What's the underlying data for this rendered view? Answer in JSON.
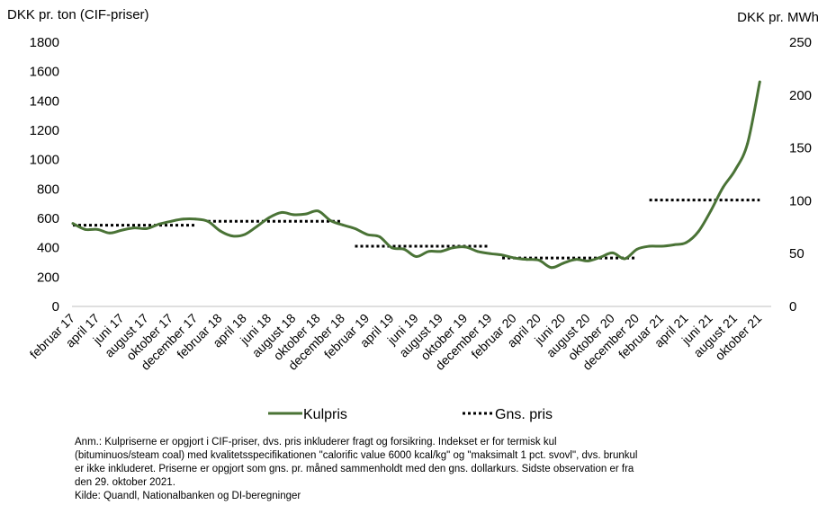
{
  "chart_data": {
    "type": "line",
    "y_left_label": "DKK pr. ton (CIF-priser)",
    "y_right_label": "DKK pr. MWh",
    "y_left_ticks": [
      0,
      200,
      400,
      600,
      800,
      1000,
      1200,
      1400,
      1600,
      1800
    ],
    "y_right_ticks": [
      0,
      50,
      100,
      150,
      200,
      250
    ],
    "ylim_left": [
      0,
      1800
    ],
    "ylim_right": [
      0,
      250
    ],
    "months": [
      "feb 2017",
      "mar 2017",
      "apr 2017",
      "maj 2017",
      "jun 2017",
      "jul 2017",
      "aug 2017",
      "sep 2017",
      "okt 2017",
      "nov 2017",
      "dec 2017",
      "jan 2018",
      "feb 2018",
      "mar 2018",
      "apr 2018",
      "maj 2018",
      "jun 2018",
      "jul 2018",
      "aug 2018",
      "sep 2018",
      "okt 2018",
      "nov 2018",
      "dec 2018",
      "jan 2019",
      "feb 2019",
      "mar 2019",
      "apr 2019",
      "maj 2019",
      "jun 2019",
      "jul 2019",
      "aug 2019",
      "sep 2019",
      "okt 2019",
      "nov 2019",
      "dec 2019",
      "jan 2020",
      "feb 2020",
      "mar 2020",
      "apr 2020",
      "maj 2020",
      "jun 2020",
      "jul 2020",
      "aug 2020",
      "sep 2020",
      "okt 2020",
      "nov 2020",
      "dec 2020",
      "jan 2021",
      "feb 2021",
      "mar 2021",
      "apr 2021",
      "maj 2021",
      "jun 2021",
      "jul 2021",
      "aug 2021",
      "sep 2021",
      "okt 2021"
    ],
    "x_tick_labels": [
      "februar 17",
      "april 17",
      "juni 17",
      "august 17",
      "oktober 17",
      "december 17",
      "februar 18",
      "april 18",
      "juni 18",
      "august 18",
      "oktober 18",
      "december 18",
      "februar 19",
      "april 19",
      "juni 19",
      "august 19",
      "oktober 19",
      "december 19",
      "februar 20",
      "april 20",
      "juni 20",
      "august 20",
      "oktober 20",
      "december 20",
      "februar 21",
      "april 21",
      "juni 21",
      "august 21",
      "oktober 21"
    ],
    "series": [
      {
        "name": "Kulpris",
        "axis": "left",
        "color": "#4a7336",
        "values": [
          565,
          525,
          525,
          500,
          520,
          535,
          530,
          560,
          580,
          595,
          595,
          580,
          515,
          480,
          490,
          545,
          605,
          640,
          625,
          630,
          650,
          585,
          555,
          530,
          490,
          475,
          400,
          390,
          340,
          375,
          375,
          400,
          405,
          375,
          360,
          350,
          330,
          320,
          315,
          265,
          295,
          320,
          310,
          335,
          365,
          325,
          390,
          410,
          410,
          420,
          435,
          510,
          650,
          810,
          930,
          1110,
          1530
        ]
      },
      {
        "name": "Gns. pris",
        "axis": "left",
        "color": "#000000",
        "style": "dotted",
        "segments": [
          {
            "from": "feb 2017",
            "to": "dec 2017",
            "value": 553
          },
          {
            "from": "jan 2018",
            "to": "dec 2018",
            "value": 580
          },
          {
            "from": "jan 2019",
            "to": "dec 2019",
            "value": 410
          },
          {
            "from": "jan 2020",
            "to": "dec 2020",
            "value": 330
          },
          {
            "from": "jan 2021",
            "to": "okt 2021",
            "value": 725
          }
        ]
      }
    ],
    "legend_position": "bottom",
    "grid": false
  },
  "notes": [
    "Anm.: Kulpriserne er opgjort i CIF-priser, dvs. pris inkluderer fragt og forsikring. Indekset er for termisk kul",
    "(bituminuos/steam coal) med kvalitetsspecifikationen \"calorific value 6000 kcal/kg\" og \"maksimalt 1 pct. svovl\", dvs. brunkul",
    "er ikke inkluderet.  Priserne er opgjort som gns. pr. måned sammenholdt med den gns. dollarkurs. Sidste observation er fra",
    "den 29. oktober 2021.",
    "Kilde: Quandl, Nationalbanken og DI-beregninger"
  ]
}
